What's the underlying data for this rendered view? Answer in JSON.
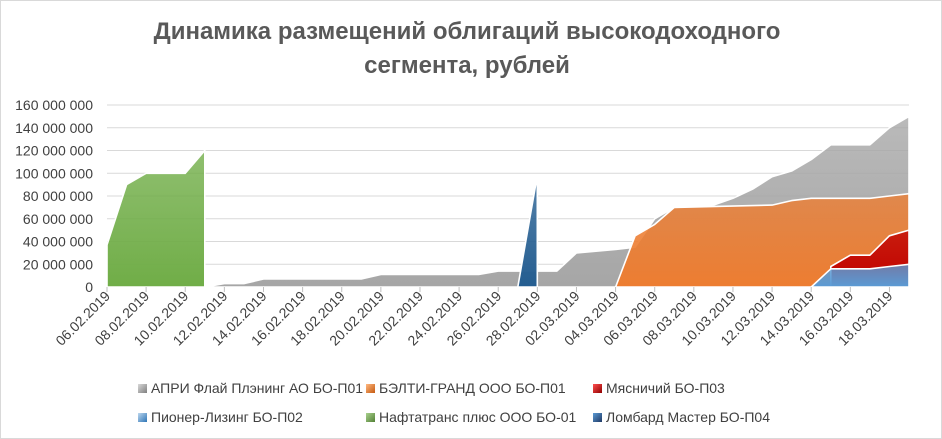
{
  "chart_data": {
    "type": "area",
    "title_lines": [
      "Динамика размещений облигаций высокодоходного",
      "сегмента, рублей"
    ],
    "xlabel": "",
    "ylabel": "",
    "ylim": [
      0,
      160000000
    ],
    "y_ticks": [
      0,
      20000000,
      40000000,
      60000000,
      80000000,
      100000000,
      120000000,
      140000000,
      160000000
    ],
    "y_tick_labels": [
      "0",
      "20 000 000",
      "40 000 000",
      "60 000 000",
      "80 000 000",
      "100 000 000",
      "120 000 000",
      "140 000 000",
      "160 000 000"
    ],
    "x_tick_labels": [
      "06.02.2019",
      "08.02.2019",
      "10.02.2019",
      "12.02.2019",
      "14.02.2019",
      "16.02.2019",
      "18.02.2019",
      "20.02.2019",
      "22.02.2019",
      "24.02.2019",
      "26.02.2019",
      "28.02.2019",
      "02.03.2019",
      "04.03.2019",
      "06.03.2019",
      "08.03.2019",
      "10.03.2019",
      "12.03.2019",
      "14.03.2019",
      "16.03.2019",
      "18.03.2019"
    ],
    "x_start": "06.02.2019",
    "x_end": "19.03.2019",
    "grid": "horizontal",
    "legend_position": "bottom",
    "series": [
      {
        "name": "АПРИ Флай Плэнинг АО БО-П01",
        "color": "#a6a6a6",
        "points": [
          [
            "11.02.2019",
            0
          ],
          [
            "12.02.2019",
            3000000
          ],
          [
            "13.02.2019",
            3000000
          ],
          [
            "14.02.2019",
            7000000
          ],
          [
            "19.02.2019",
            7000000
          ],
          [
            "20.02.2019",
            11000000
          ],
          [
            "25.02.2019",
            11000000
          ],
          [
            "26.02.2019",
            14000000
          ],
          [
            "01.03.2019",
            14000000
          ],
          [
            "02.03.2019",
            30000000
          ],
          [
            "04.03.2019",
            33000000
          ],
          [
            "05.03.2019",
            35000000
          ],
          [
            "06.03.2019",
            60000000
          ],
          [
            "07.03.2019",
            70000000
          ],
          [
            "09.03.2019",
            72000000
          ],
          [
            "10.03.2019",
            78000000
          ],
          [
            "11.03.2019",
            86000000
          ],
          [
            "12.03.2019",
            97000000
          ],
          [
            "13.03.2019",
            102000000
          ],
          [
            "14.03.2019",
            112000000
          ],
          [
            "15.03.2019",
            125000000
          ],
          [
            "17.03.2019",
            125000000
          ],
          [
            "18.03.2019",
            140000000
          ],
          [
            "19.03.2019",
            150000000
          ]
        ]
      },
      {
        "name": "БЭЛТИ-ГРАНД ООО БО-П01",
        "color": "#ed7d31",
        "points": [
          [
            "04.03.2019",
            0
          ],
          [
            "05.03.2019",
            45000000
          ],
          [
            "06.03.2019",
            55000000
          ],
          [
            "07.03.2019",
            70000000
          ],
          [
            "12.03.2019",
            72000000
          ],
          [
            "13.03.2019",
            76000000
          ],
          [
            "14.03.2019",
            78000000
          ],
          [
            "17.03.2019",
            78000000
          ],
          [
            "18.03.2019",
            80000000
          ],
          [
            "19.03.2019",
            82000000
          ]
        ]
      },
      {
        "name": "Мясничий БО-П03",
        "color": "#c00000",
        "points": [
          [
            "15.03.2019",
            0
          ],
          [
            "15.03.2019",
            18000000
          ],
          [
            "16.03.2019",
            28000000
          ],
          [
            "17.03.2019",
            28000000
          ],
          [
            "18.03.2019",
            45000000
          ],
          [
            "19.03.2019",
            50000000
          ]
        ]
      },
      {
        "name": "Пионер-Лизинг БО-П02",
        "color": "#5b9bd5",
        "points": [
          [
            "14.03.2019",
            0
          ],
          [
            "15.03.2019",
            16000000
          ],
          [
            "17.03.2019",
            16000000
          ],
          [
            "18.03.2019",
            18000000
          ],
          [
            "19.03.2019",
            20000000
          ]
        ]
      },
      {
        "name": "Нафтатранс плюс ООО БО-01",
        "color": "#70ad47",
        "points": [
          [
            "06.02.2019",
            37000000
          ],
          [
            "07.02.2019",
            90000000
          ],
          [
            "08.02.2019",
            100000000
          ],
          [
            "10.02.2019",
            100000000
          ],
          [
            "11.02.2019",
            120000000
          ],
          [
            "11.02.2019",
            0
          ]
        ]
      },
      {
        "name": "Ломбард Мастер БО-П04",
        "color": "#255e91",
        "points": [
          [
            "27.02.2019",
            0
          ],
          [
            "28.02.2019",
            98000000
          ],
          [
            "28.02.2019",
            0
          ]
        ]
      }
    ]
  }
}
